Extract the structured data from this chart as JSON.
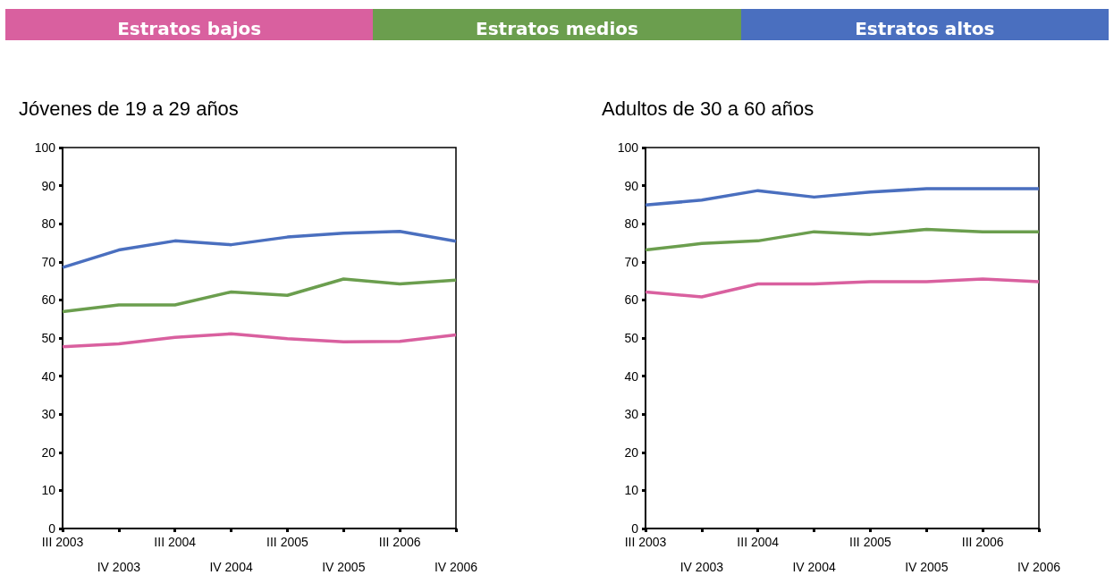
{
  "chart_data": [
    {
      "type": "line",
      "title": "Jóvenes de 19 a 29 años",
      "categories": [
        "III 2003",
        "IV 2003",
        "III 2004",
        "IV 2004",
        "III 2005",
        "IV 2005",
        "III 2006",
        "IV 2006"
      ],
      "ylim": [
        0,
        100
      ],
      "yticks": [
        0,
        10,
        20,
        30,
        40,
        50,
        60,
        70,
        80,
        90,
        100
      ],
      "grid": false,
      "legend": "top",
      "marker": "none",
      "series": [
        {
          "name": "Estratos bajos",
          "color": "#d9609f",
          "values": [
            47.7,
            48.5,
            50.2,
            51.1,
            49.8,
            49,
            49.1,
            50.8
          ]
        },
        {
          "name": "Estratos medios",
          "color": "#6b9e4e",
          "values": [
            56.9,
            58.7,
            58.7,
            62.1,
            61.2,
            65.5,
            64.2,
            65.2
          ]
        },
        {
          "name": "Estratos altos",
          "color": "#4a6fbf",
          "values": [
            68.5,
            73.1,
            75.5,
            74.5,
            76.5,
            77.5,
            78,
            75.4
          ]
        }
      ]
    },
    {
      "type": "line",
      "title": "Adultos de 30 a 60 años",
      "categories": [
        "III 2003",
        "IV 2003",
        "III 2004",
        "IV 2004",
        "III 2005",
        "IV 2005",
        "III 2006",
        "IV 2006"
      ],
      "ylim": [
        0,
        100
      ],
      "yticks": [
        0,
        10,
        20,
        30,
        40,
        50,
        60,
        70,
        80,
        90,
        100
      ],
      "grid": false,
      "marker": "none",
      "series": [
        {
          "color": "#d9609f",
          "values": [
            62.1,
            60.8,
            64.2,
            64.2,
            64.8,
            64.8,
            65.5,
            64.8
          ]
        },
        {
          "color": "#6b9e4e",
          "values": [
            73.1,
            74.8,
            75.5,
            77.9,
            77.2,
            78.5,
            77.9,
            77.9
          ]
        },
        {
          "color": "#4a6fbf",
          "values": [
            84.9,
            86.2,
            88.7,
            87,
            88.3,
            89.2,
            89.2,
            89.2
          ]
        }
      ]
    }
  ]
}
